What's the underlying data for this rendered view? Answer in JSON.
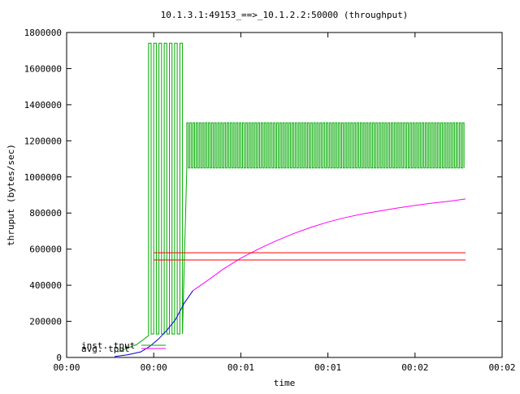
{
  "chart_data": {
    "type": "line",
    "title": "10.1.3.1:49153_==>_10.1.2.2:50000 (throughput)",
    "xlabel": "time",
    "ylabel": "thruput (bytes/sec)",
    "x_tick_labels": [
      "00:00",
      "00:00",
      "00:01",
      "00:01",
      "00:02",
      "00:02"
    ],
    "y_ticks": [
      0,
      200000,
      400000,
      600000,
      800000,
      1000000,
      1200000,
      1400000,
      1600000,
      1800000
    ],
    "y_tick_labels": [
      "0",
      "200000",
      "400000",
      "600000",
      "800000",
      "1000000",
      "1200000",
      "1400000",
      "1600000",
      "1800000"
    ],
    "ylim": [
      0,
      1800000
    ],
    "legend_position": "bottom-left",
    "colors": {
      "inst_tput": "#00aa00",
      "avg_tput": "#ff00ff",
      "blue_trace": "#0000cc",
      "red_lines": "#ff0000"
    },
    "series": [
      {
        "name": "inst. tput",
        "color": "#00aa00",
        "oscillation": [
          {
            "t_start": 0.94,
            "t_end": 1.36,
            "low": 130000,
            "high": 1740000,
            "cycles": 7
          },
          {
            "t_start": 1.38,
            "t_end": 4.58,
            "low": 1050000,
            "high": 1300000,
            "cycles": 90
          }
        ],
        "ramp": [
          [
            0.58,
            30000
          ],
          [
            0.8,
            70000
          ],
          [
            0.94,
            120000
          ]
        ]
      },
      {
        "name": "avg. tput",
        "color": "#ff00ff",
        "x": [
          1.45,
          1.6,
          1.8,
          2.0,
          2.2,
          2.4,
          2.6,
          2.8,
          3.0,
          3.2,
          3.4,
          3.6,
          3.8,
          4.0,
          4.2,
          4.4,
          4.58
        ],
        "values": [
          370000,
          420000,
          490000,
          550000,
          600000,
          645000,
          685000,
          720000,
          750000,
          775000,
          795000,
          812000,
          828000,
          842000,
          855000,
          866000,
          878000
        ]
      },
      {
        "color": "#0000cc",
        "x": [
          0.55,
          0.7,
          0.85,
          0.95,
          1.05,
          1.15,
          1.25,
          1.35,
          1.45
        ],
        "values": [
          5000,
          15000,
          30000,
          60000,
          100000,
          150000,
          210000,
          300000,
          370000
        ]
      },
      {
        "color": "#ff0000",
        "x": [
          1.0,
          4.58
        ],
        "values": [
          580000,
          580000
        ]
      },
      {
        "color": "#ff0000",
        "x": [
          1.0,
          4.58
        ],
        "values": [
          540000,
          540000
        ]
      }
    ]
  }
}
